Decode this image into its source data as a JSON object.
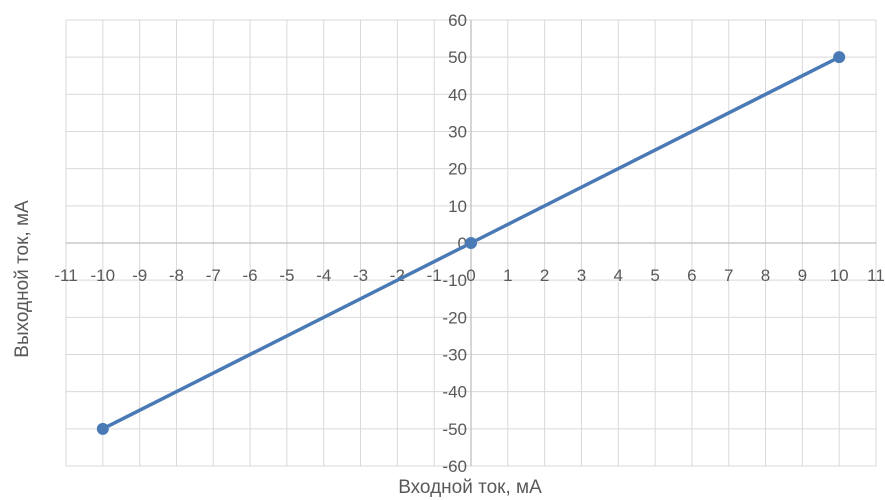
{
  "chart_data": {
    "type": "scatter",
    "title": "",
    "xlabel": "Входной ток, мА",
    "ylabel": "Выходной ток, мА",
    "xlim": [
      -11,
      11
    ],
    "ylim": [
      -60,
      60
    ],
    "x_ticks": [
      -11,
      -10,
      -9,
      -8,
      -7,
      -6,
      -5,
      -4,
      -3,
      -2,
      -1,
      0,
      1,
      2,
      3,
      4,
      5,
      6,
      7,
      8,
      9,
      10,
      11
    ],
    "y_ticks": [
      60,
      50,
      40,
      30,
      20,
      10,
      0,
      -10,
      -20,
      -30,
      -40,
      -50,
      -60
    ],
    "grid": true,
    "series": [
      {
        "x": [
          -10,
          0,
          10
        ],
        "y": [
          -50,
          0,
          50
        ],
        "mode": "lines+markers",
        "color": "#4a7ab5"
      }
    ],
    "colors": {
      "line": "#4a7ab5",
      "grid": "#d9d9d9",
      "axis": "#bfbfbf",
      "text": "#595959"
    }
  }
}
